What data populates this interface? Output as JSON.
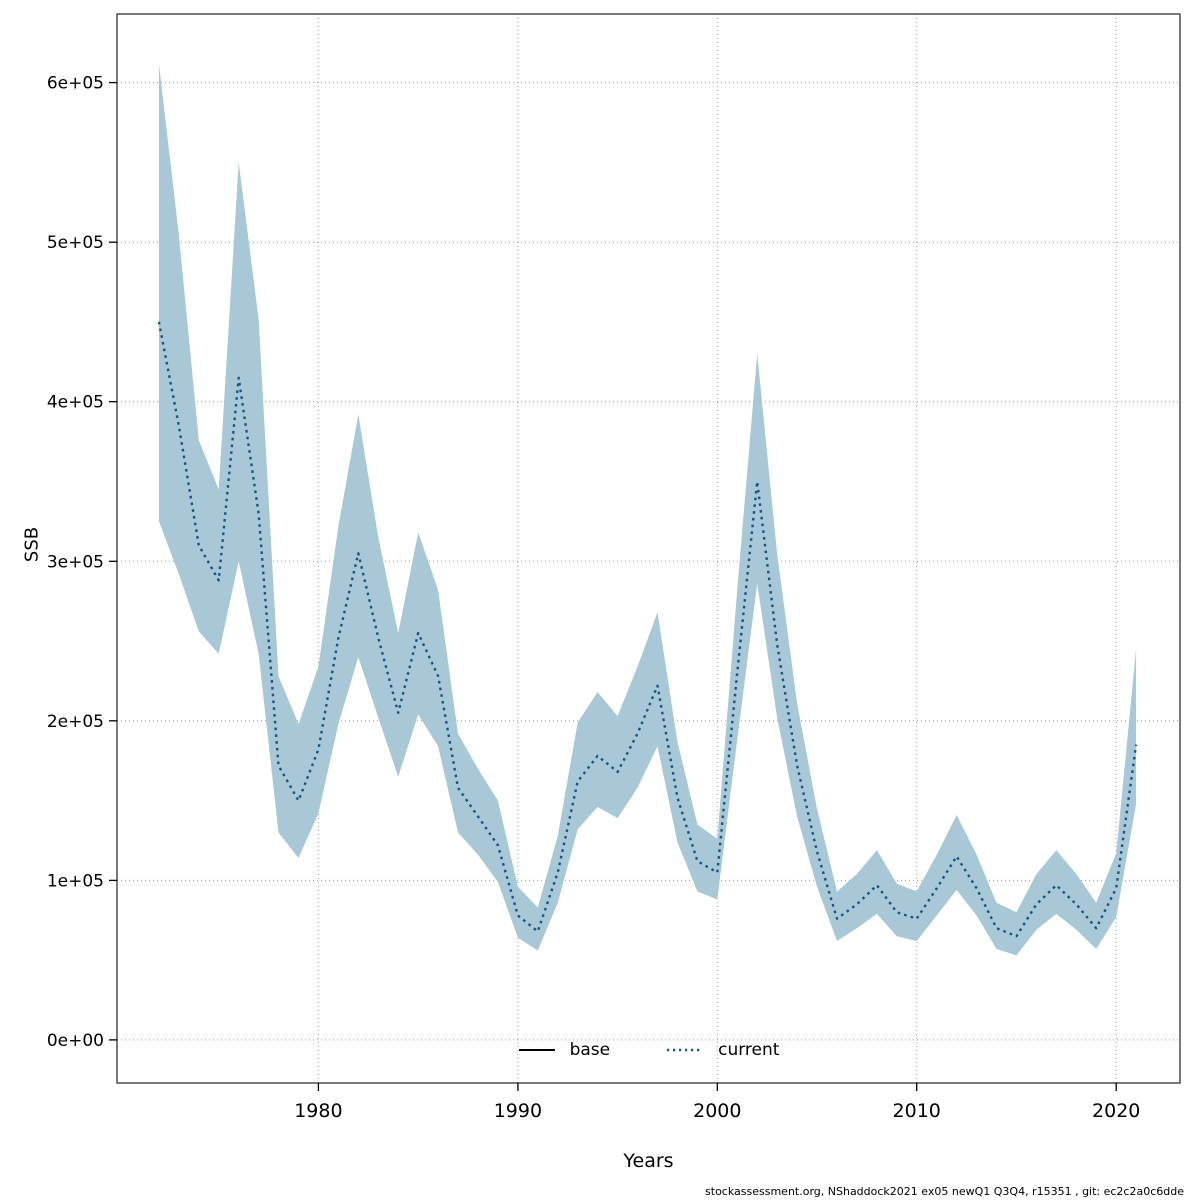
{
  "chart_data": {
    "type": "line",
    "title": "",
    "xlabel": "Years",
    "ylabel": "SSB",
    "x_ticks": [
      1980,
      1990,
      2000,
      2010,
      2020
    ],
    "x_tick_labels": [
      "1980",
      "1990",
      "2000",
      "2010",
      "2020"
    ],
    "y_ticks": [
      {
        "value": 0,
        "label": "0e+00"
      },
      {
        "value": 100000,
        "label": "1e+05"
      },
      {
        "value": 200000,
        "label": "2e+05"
      },
      {
        "value": 300000,
        "label": "3e+05"
      },
      {
        "value": 400000,
        "label": "4e+05"
      },
      {
        "value": 500000,
        "label": "5e+05"
      },
      {
        "value": 600000,
        "label": "6e+05"
      }
    ],
    "xlim": [
      1969.9,
      2023.2
    ],
    "ylim": [
      -27000,
      643000
    ],
    "grid": "dotted",
    "grid_color": "#999999",
    "band_color": "#a8c8d8",
    "line_color": "#175580",
    "legend": {
      "position": "bottom-center",
      "entries": [
        {
          "label": "base",
          "line_style": "solid",
          "color": "#000000"
        },
        {
          "label": "current",
          "line_style": "dotted",
          "color": "#175580"
        }
      ]
    },
    "series": [
      {
        "name": "current",
        "line_style": "dotted",
        "years": [
          1972,
          1973,
          1974,
          1975,
          1976,
          1977,
          1978,
          1979,
          1980,
          1981,
          1982,
          1983,
          1984,
          1985,
          1986,
          1987,
          1988,
          1989,
          1990,
          1991,
          1992,
          1993,
          1994,
          1995,
          1996,
          1997,
          1998,
          1999,
          2000,
          2001,
          2002,
          2003,
          2004,
          2005,
          2006,
          2007,
          2008,
          2009,
          2010,
          2011,
          2012,
          2013,
          2014,
          2015,
          2016,
          2017,
          2018,
          2019,
          2020,
          2021
        ],
        "values": [
          450000,
          385000,
          310000,
          288000,
          415000,
          330000,
          172000,
          150000,
          182000,
          252000,
          305000,
          252000,
          205000,
          255000,
          228000,
          158000,
          140000,
          122000,
          78000,
          68000,
          105000,
          162000,
          178000,
          168000,
          192000,
          222000,
          152000,
          112000,
          105000,
          230000,
          350000,
          248000,
          172000,
          118000,
          76000,
          85000,
          97000,
          80000,
          76000,
          95000,
          115000,
          95000,
          70000,
          65000,
          85000,
          97000,
          85000,
          70000,
          95000,
          185000
        ],
        "lower": [
          325000,
          292000,
          256000,
          242000,
          300000,
          242000,
          130000,
          114000,
          142000,
          198000,
          240000,
          202000,
          165000,
          204000,
          184000,
          130000,
          116000,
          99000,
          64000,
          56000,
          86000,
          132000,
          146000,
          139000,
          158000,
          184000,
          124000,
          93000,
          88000,
          188000,
          286000,
          202000,
          140000,
          96000,
          62000,
          70000,
          79000,
          65000,
          62000,
          78000,
          94000,
          78000,
          57000,
          53000,
          69000,
          79000,
          69000,
          57000,
          77000,
          148000
        ],
        "upper": [
          612000,
          505000,
          376000,
          345000,
          550000,
          452000,
          228000,
          198000,
          234000,
          322000,
          392000,
          315000,
          255000,
          318000,
          282000,
          192000,
          170000,
          150000,
          96000,
          83000,
          128000,
          199000,
          218000,
          203000,
          234000,
          268000,
          187000,
          135000,
          126000,
          282000,
          430000,
          305000,
          211000,
          145000,
          93000,
          104000,
          119000,
          98000,
          93000,
          116000,
          141000,
          116000,
          86000,
          80000,
          104000,
          119000,
          104000,
          86000,
          117000,
          245000
        ]
      }
    ]
  },
  "footer": "stockassessment.org, NShaddock2021 ex05 newQ1 Q3Q4, r15351 , git: ec2c2a0c6dde"
}
